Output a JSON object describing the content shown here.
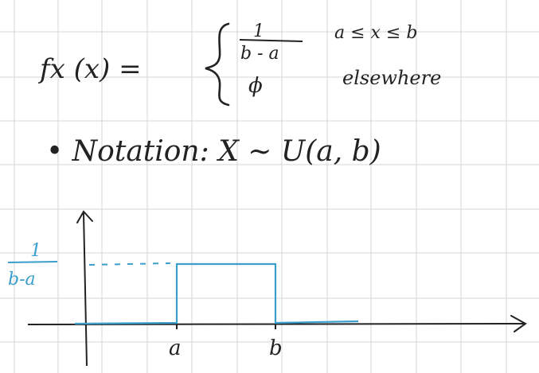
{
  "note": {
    "pdf_lhs": "fx (x) =",
    "case1_numerator": "1",
    "case1_denominator": "b - a",
    "case1_condition": "a ≤ x ≤ b",
    "case2_value": "ϕ",
    "case2_condition": "elsewhere",
    "notation_line": "• Notation: X ~ U(a, b)"
  },
  "graph": {
    "height_label_numerator": "1",
    "height_label_denominator": "b-a",
    "tick_a": "a",
    "tick_b": "b"
  },
  "colors": {
    "ink": "#222222",
    "blue": "#3a9fcc",
    "grid": "#d6d6d6"
  }
}
